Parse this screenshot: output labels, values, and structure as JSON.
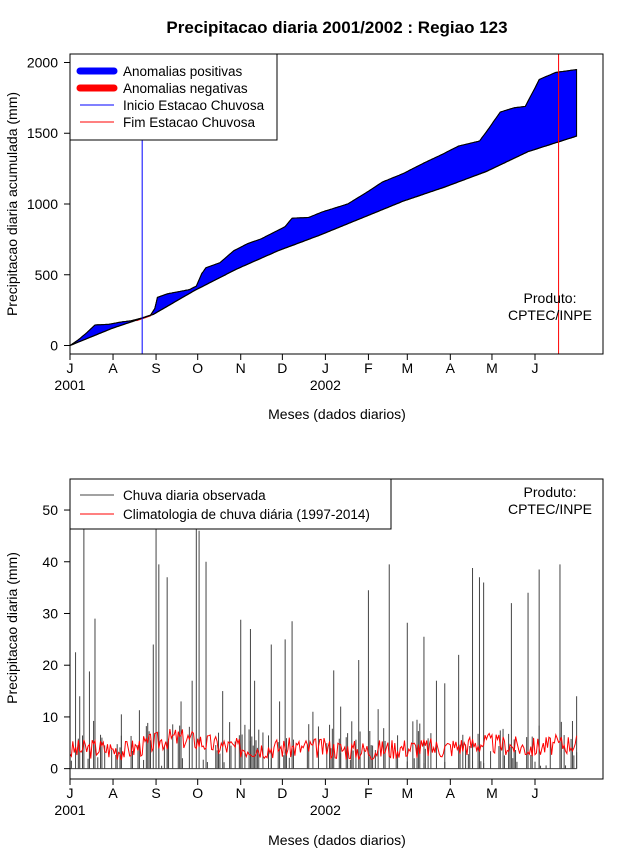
{
  "chart_data": [
    {
      "type": "area",
      "title": "Precipitacao diaria 2001/2002 : Regiao 123",
      "xlabel": "Meses (dados diarios)",
      "ylabel": "Precipitacao diaria acumulada (mm)",
      "xlim": [
        0,
        384
      ],
      "ylim": [
        -60,
        2060
      ],
      "yticks": [
        0,
        500,
        1000,
        1500,
        2000
      ],
      "month_ticks": [
        {
          "label": "J",
          "day": 0
        },
        {
          "label": "A",
          "day": 31
        },
        {
          "label": "S",
          "day": 62
        },
        {
          "label": "O",
          "day": 92
        },
        {
          "label": "N",
          "day": 123
        },
        {
          "label": "D",
          "day": 153
        },
        {
          "label": "J",
          "day": 184
        },
        {
          "label": "F",
          "day": 215
        },
        {
          "label": "M",
          "day": 243
        },
        {
          "label": "A",
          "day": 274
        },
        {
          "label": "M",
          "day": 304
        },
        {
          "label": "J",
          "day": 335
        }
      ],
      "year_labels": [
        {
          "label": "2001",
          "day": 0
        },
        {
          "label": "2002",
          "day": 184
        }
      ],
      "legend": [
        {
          "label": "Anomalias positivas",
          "color": "#0000ff",
          "style": "thick"
        },
        {
          "label": "Anomalias negativas",
          "color": "#ff0000",
          "style": "thick"
        },
        {
          "label": "Inicio Estacao Chuvosa",
          "color": "#0000ff",
          "style": "thin"
        },
        {
          "label": "Fim Estacao Chuvosa",
          "color": "#ff0000",
          "style": "thin"
        }
      ],
      "annotation": [
        "Produto:",
        "CPTEC/INPE"
      ],
      "rainy_season_start_day": 52,
      "rainy_season_end_day": 352,
      "series": [
        {
          "name": "Precipitacao observada acumulada",
          "x": [
            0,
            6,
            12,
            18,
            28,
            36,
            44,
            52,
            58,
            61,
            63,
            70,
            86,
            91,
            95,
            98,
            108,
            118,
            128,
            138,
            148,
            155,
            160,
            172,
            182,
            200,
            215,
            225,
            240,
            255,
            268,
            280,
            295,
            300,
            310,
            320,
            328,
            335,
            338,
            350,
            365
          ],
          "values": [
            0,
            40,
            90,
            145,
            150,
            165,
            175,
            195,
            215,
            260,
            340,
            365,
            395,
            420,
            510,
            550,
            585,
            670,
            720,
            755,
            805,
            840,
            900,
            905,
            945,
            1000,
            1090,
            1155,
            1215,
            1290,
            1350,
            1410,
            1445,
            1510,
            1650,
            1680,
            1690,
            1820,
            1880,
            1930,
            1950
          ]
        },
        {
          "name": "Climatologia acumulada",
          "x": [
            0,
            30,
            60,
            90,
            120,
            150,
            180,
            210,
            240,
            270,
            300,
            330,
            365
          ],
          "values": [
            0,
            120,
            220,
            390,
            540,
            670,
            780,
            900,
            1020,
            1120,
            1230,
            1370,
            1480
          ]
        }
      ]
    },
    {
      "type": "line",
      "title": "",
      "xlabel": "Meses (dados diarios)",
      "ylabel": "Precipitacao diaria (mm)",
      "xlim": [
        0,
        384
      ],
      "ylim": [
        -2,
        56
      ],
      "yticks": [
        0,
        10,
        20,
        30,
        40,
        50
      ],
      "month_ticks": [
        {
          "label": "J",
          "day": 0
        },
        {
          "label": "A",
          "day": 31
        },
        {
          "label": "S",
          "day": 62
        },
        {
          "label": "O",
          "day": 92
        },
        {
          "label": "N",
          "day": 123
        },
        {
          "label": "D",
          "day": 153
        },
        {
          "label": "J",
          "day": 184
        },
        {
          "label": "F",
          "day": 215
        },
        {
          "label": "M",
          "day": 243
        },
        {
          "label": "A",
          "day": 274
        },
        {
          "label": "M",
          "day": 304
        },
        {
          "label": "J",
          "day": 335
        }
      ],
      "year_labels": [
        {
          "label": "2001",
          "day": 0
        },
        {
          "label": "2002",
          "day": 184
        }
      ],
      "legend": [
        {
          "label": "Chuva diaria observada",
          "color": "#444444"
        },
        {
          "label": "Climatologia de chuva diária (1997-2014)",
          "color": "#ff0000"
        }
      ],
      "annotation": [
        "Produto:",
        "CPTEC/INPE"
      ],
      "series": [
        {
          "name": "Chuva diaria observada (picos principais)",
          "x": [
            4,
            7,
            10,
            14,
            18,
            23,
            37,
            50,
            60,
            62,
            64,
            70,
            80,
            88,
            91,
            93,
            98,
            110,
            115,
            123,
            130,
            133,
            145,
            151,
            155,
            160,
            175,
            190,
            195,
            208,
            215,
            222,
            230,
            243,
            255,
            264,
            270,
            280,
            290,
            295,
            298,
            318,
            330,
            338,
            353,
            365
          ],
          "values": [
            22.5,
            14,
            48,
            18.8,
            29,
            6,
            10.5,
            11.3,
            24,
            47,
            39.5,
            37,
            13,
            17,
            50,
            46,
            40,
            15,
            9,
            28.8,
            27,
            17,
            24,
            13,
            25,
            28.5,
            11,
            19,
            12,
            21,
            34.5,
            11.5,
            39.5,
            28.2,
            25.5,
            17,
            16.5,
            22,
            38.8,
            37,
            36,
            32,
            34,
            38.5,
            39.5,
            14
          ]
        },
        {
          "name": "Climatologia de chuva diária (1997-2014)",
          "x": [
            0,
            20,
            40,
            60,
            75,
            90,
            105,
            120,
            150,
            180,
            210,
            240,
            270,
            300,
            330,
            365
          ],
          "values": [
            3.5,
            4,
            3.5,
            5,
            6,
            5.5,
            4.5,
            4,
            4,
            4,
            3.5,
            4,
            4,
            5,
            4,
            5
          ]
        }
      ]
    }
  ]
}
